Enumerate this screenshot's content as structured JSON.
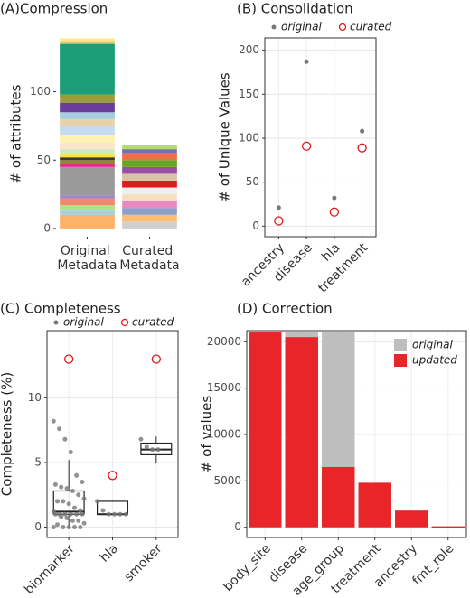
{
  "chart_data": [
    {
      "type": "stacked_bar",
      "title": "(A)Compression",
      "ylabel": "# of attributes",
      "categories": [
        "Original Metadata",
        "Curated Metadata"
      ],
      "stacks": [
        {
          "values": [
            10,
            3,
            4,
            5,
            2,
            21,
            2,
            3,
            2,
            3,
            3,
            5,
            5,
            7,
            5,
            5,
            7,
            6,
            37,
            2,
            2
          ],
          "colors": [
            "#fbb36a",
            "#a6cee3",
            "#b2df8a",
            "#f08a6e",
            "#9e86c8",
            "#9a9a9a",
            "#e7298a",
            "#8c8c2c",
            "#3a3a3a",
            "#fde050",
            "#ccebc5",
            "#fbe6c8",
            "#fff2ae",
            "#c6dbef",
            "#e8d3a8",
            "#a6cee3",
            "#6a3d9a",
            "#9c9c3c",
            "#1b9e77",
            "#d9c878",
            "#fde88a"
          ]
        },
        {
          "values": [
            5,
            5,
            5,
            5,
            5,
            5,
            5,
            5,
            5,
            5,
            5,
            3,
            3
          ],
          "colors": [
            "#cfcfcf",
            "#fdbf6f",
            "#8da0cb",
            "#e78ac3",
            "#f4e0c0",
            "#eeeeee",
            "#e31a1c",
            "#d9c2a8",
            "#984ea3",
            "#66a61e",
            "#f46d43",
            "#7570b3",
            "#b3de69"
          ]
        }
      ],
      "ylim": [
        -6,
        144
      ],
      "yticks": [
        0,
        50,
        100
      ]
    },
    {
      "type": "dot",
      "title": "(B) Consolidation",
      "ylabel": "# of Unique Values",
      "categories": [
        "ancestry",
        "disease",
        "hla",
        "treatment"
      ],
      "series": [
        {
          "name": "original",
          "color": "#777777",
          "marker": "dot",
          "values": [
            21,
            187,
            32,
            108
          ]
        },
        {
          "name": "curated",
          "color": "#e0191c",
          "marker": "circle",
          "values": [
            6,
            91,
            16,
            89
          ]
        }
      ],
      "ylim": [
        -12,
        214
      ],
      "yticks": [
        0,
        50,
        100,
        150,
        200
      ],
      "grid": true
    },
    {
      "type": "box",
      "title": "(C) Completeness",
      "ylabel": "Completeness (%)",
      "categories": [
        "biomarker",
        "hla",
        "smoker"
      ],
      "boxes": [
        {
          "whislo": 0,
          "q1": 1,
          "med": 1.2,
          "q3": 2.8,
          "whishi": 5.2
        },
        {
          "whislo": 1,
          "q1": 1,
          "med": 1,
          "q3": 2,
          "whishi": 2
        },
        {
          "whislo": 5,
          "q1": 5.6,
          "med": 6,
          "q3": 6.5,
          "whishi": 7
        }
      ],
      "series": [
        {
          "name": "original",
          "color": "#777777",
          "marker": "dot",
          "values": [
            [
              8.2,
              7.6,
              6.8,
              5.8,
              4,
              3.5,
              3.3,
              3.1,
              3,
              2.8,
              2.5,
              2.2,
              2,
              2,
              1.8,
              1.5,
              1.3,
              1.2,
              1,
              1,
              1,
              1,
              1,
              1,
              0.8,
              0.7,
              0.5,
              0.5,
              0.3,
              0.2,
              0,
              0,
              0,
              0,
              0
            ],
            [
              2,
              1.3,
              1,
              1,
              1,
              1
            ],
            [
              6.8,
              6.2,
              6,
              6
            ]
          ]
        },
        {
          "name": "curated",
          "color": "#e0191c",
          "marker": "circle",
          "values": [
            13,
            4,
            13
          ]
        }
      ],
      "ylim": [
        -0.8,
        15.2
      ],
      "yticks": [
        0,
        5,
        10
      ],
      "grid": true
    },
    {
      "type": "overlay_bar",
      "title": "(D) Correction",
      "ylabel": "# of values",
      "categories": [
        "body_site",
        "disease",
        "age_group",
        "treatment",
        "ancestry",
        "fmt_role"
      ],
      "series": [
        {
          "name": "original",
          "color": "#bebebe",
          "values": [
            21000,
            21000,
            21000,
            4800,
            1800,
            100
          ]
        },
        {
          "name": "updated",
          "color": "#e8262a",
          "values": [
            21000,
            20500,
            6500,
            4800,
            1800,
            100
          ]
        }
      ],
      "ylim": [
        -1100,
        21200
      ],
      "yticks": [
        0,
        5000,
        10000,
        15000,
        20000
      ],
      "grid": true,
      "legend": "top-right"
    }
  ]
}
